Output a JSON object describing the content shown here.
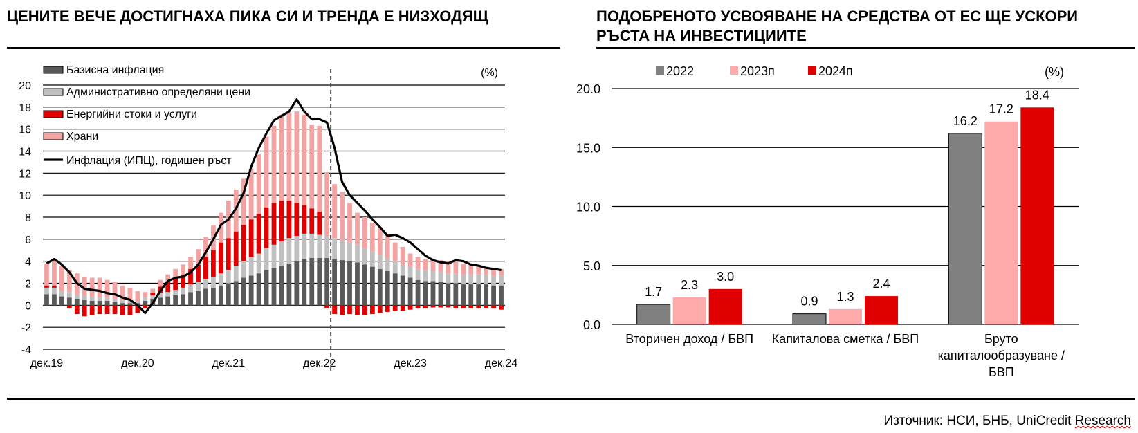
{
  "left_title": "ЦЕНИТЕ ВЕЧЕ ДОСТИГНАХА ПИКА СИ И ТРЕНДА Е НИЗХОДЯЩ",
  "right_title": "ПОДОБРЕНОТО УСВОЯВАНЕ НА СРЕДСТВА ОТ ЕС ЩЕ УСКОРИ РЪСТА НА ИНВЕСТИЦИИТЕ",
  "source_prefix": "Източник: НСИ, БНБ, UniCredit ",
  "source_suffix": "Research",
  "chart_data": [
    {
      "type": "bar",
      "stacked": true,
      "unit": "(%)",
      "ylim": [
        -4,
        20
      ],
      "yticks": [
        "-4",
        "-2",
        "0",
        "2",
        "4",
        "6",
        "8",
        "10",
        "12",
        "14",
        "16",
        "18",
        "20"
      ],
      "xticks": [
        "дек.19",
        "дек.20",
        "дек.21",
        "дек.22",
        "дек.23",
        "дек.24"
      ],
      "x": [
        "дек.19",
        "яну.20",
        "фев.20",
        "мар.20",
        "апр.20",
        "май.20",
        "юни.20",
        "юли.20",
        "авг.20",
        "сеп.20",
        "окт.20",
        "ное.20",
        "дек.20",
        "яну.21",
        "фев.21",
        "мар.21",
        "апр.21",
        "май.21",
        "юни.21",
        "юли.21",
        "авг.21",
        "сеп.21",
        "окт.21",
        "ное.21",
        "дек.21",
        "яну.22",
        "фев.22",
        "мар.22",
        "апр.22",
        "май.22",
        "юни.22",
        "юли.22",
        "авг.22",
        "сеп.22",
        "окт.22",
        "ное.22",
        "дек.22",
        "яну.23",
        "фев.23",
        "мар.23",
        "апр.23",
        "май.23",
        "юни.23",
        "юли.23",
        "авг.23",
        "сеп.23",
        "окт.23",
        "ное.23",
        "дек.23",
        "яну.24",
        "фев.24",
        "мар.24",
        "апр.24",
        "май.24",
        "юни.24",
        "юли.24",
        "авг.24",
        "сеп.24",
        "окт.24",
        "ное.24",
        "дек.24"
      ],
      "series": [
        {
          "name": "Базисна инфлация",
          "color": "#595959",
          "values": [
            1.0,
            1.0,
            0.8,
            0.7,
            0.6,
            0.5,
            0.4,
            0.4,
            0.4,
            0.3,
            0.2,
            0.2,
            0.2,
            0.4,
            0.6,
            0.7,
            0.8,
            0.9,
            1.0,
            1.2,
            1.3,
            1.5,
            1.6,
            1.8,
            2.0,
            2.2,
            2.5,
            2.7,
            2.9,
            3.2,
            3.4,
            3.6,
            3.8,
            4.0,
            4.2,
            4.3,
            4.3,
            4.3,
            4.2,
            4.1,
            4.0,
            3.9,
            3.7,
            3.5,
            3.3,
            3.1,
            2.9,
            2.7,
            2.5,
            2.3,
            2.2,
            2.2,
            2.1,
            2.0,
            2.0,
            1.9,
            1.9,
            1.9,
            1.9,
            1.8,
            1.8
          ]
        },
        {
          "name": "Административно определяни цени",
          "color": "#c0c0c0",
          "values": [
            0.6,
            0.6,
            0.5,
            0.5,
            0.4,
            0.4,
            0.4,
            0.3,
            0.3,
            0.3,
            0.3,
            0.2,
            0.2,
            0.3,
            0.3,
            0.4,
            0.4,
            0.5,
            0.6,
            0.7,
            0.8,
            0.9,
            1.0,
            1.1,
            1.2,
            1.4,
            1.5,
            1.7,
            1.8,
            2.0,
            2.1,
            2.2,
            2.3,
            2.3,
            2.3,
            2.2,
            2.1,
            2.0,
            1.9,
            1.8,
            1.7,
            1.6,
            1.5,
            1.4,
            1.3,
            1.2,
            1.1,
            1.0,
            1.0,
            1.0,
            1.0,
            0.9,
            0.9,
            0.9,
            0.9,
            0.9,
            0.9,
            0.9,
            0.9,
            0.9,
            0.9
          ]
        },
        {
          "name": "Енергийни стоки и услуги",
          "color": "#e00000",
          "values": [
            0.2,
            0.2,
            0.0,
            -0.3,
            -0.8,
            -1.0,
            -0.9,
            -0.8,
            -0.8,
            -0.8,
            -0.9,
            -0.9,
            -0.7,
            -0.3,
            0.2,
            0.6,
            0.9,
            1.1,
            1.2,
            1.4,
            1.6,
            2.0,
            2.4,
            2.8,
            2.9,
            3.1,
            3.3,
            3.4,
            3.6,
            3.7,
            3.8,
            3.7,
            3.4,
            3.0,
            2.6,
            2.3,
            2.1,
            -0.3,
            -0.8,
            -0.9,
            -0.8,
            -0.9,
            -0.9,
            -0.8,
            -0.7,
            -0.6,
            -0.5,
            -0.5,
            -0.4,
            -0.3,
            -0.3,
            -0.2,
            -0.2,
            -0.2,
            -0.3,
            -0.3,
            -0.3,
            -0.3,
            -0.3,
            -0.3,
            -0.4
          ]
        },
        {
          "name": "Храни",
          "color": "#f4a3a3",
          "values": [
            2.0,
            2.3,
            2.3,
            2.0,
            1.9,
            1.7,
            1.7,
            1.8,
            1.6,
            1.5,
            1.3,
            1.2,
            0.9,
            0.5,
            0.4,
            0.6,
            0.7,
            0.8,
            0.9,
            1.1,
            1.4,
            1.8,
            2.3,
            2.7,
            3.4,
            3.8,
            4.2,
            4.6,
            5.4,
            6.4,
            7.0,
            7.8,
            8.0,
            8.3,
            8.2,
            7.6,
            7.8,
            5.8,
            4.9,
            4.4,
            3.6,
            2.9,
            2.8,
            2.6,
            2.5,
            2.2,
            1.7,
            1.6,
            1.2,
            1.1,
            1.0,
            1.0,
            1.1,
            1.1,
            1.1,
            1.0,
            0.9,
            0.8,
            0.7,
            0.6,
            0.6
          ]
        }
      ],
      "line": {
        "name": "Инфлация (ИПЦ), годишен ръст",
        "color": "#000000",
        "values": [
          3.8,
          4.2,
          3.7,
          3.0,
          2.0,
          1.5,
          1.4,
          1.3,
          1.1,
          1.0,
          0.7,
          0.5,
          0.0,
          -0.7,
          0.2,
          1.3,
          2.2,
          2.5,
          2.6,
          3.0,
          3.7,
          4.8,
          6.0,
          7.3,
          7.8,
          8.8,
          10.2,
          12.6,
          14.3,
          15.6,
          16.8,
          17.2,
          17.6,
          18.7,
          17.6,
          16.9,
          16.9,
          16.6,
          14.3,
          11.2,
          10.0,
          9.3,
          8.6,
          7.8,
          7.1,
          6.3,
          6.4,
          6.1,
          5.7,
          5.1,
          4.5,
          4.1,
          3.9,
          3.8,
          4.1,
          4.0,
          3.7,
          3.6,
          3.4,
          3.3,
          3.2
        ]
      },
      "vline_at": "фев.23"
    },
    {
      "type": "bar",
      "unit": "(%)",
      "ylim": [
        0,
        20
      ],
      "yticks": [
        "0.0",
        "5.0",
        "10.0",
        "15.0",
        "20.0"
      ],
      "categories": [
        "Вторичен доход / БВП",
        "Капиталова сметка / БВП",
        "Бруто капиталообразуване / БВП"
      ],
      "category_lines": [
        [
          "Вторичен доход / БВП"
        ],
        [
          "Капиталова сметка / БВП"
        ],
        [
          "Бруто",
          "капиталообразуване /",
          "БВП"
        ]
      ],
      "series": [
        {
          "name": "2022",
          "color": "#808080",
          "values": [
            1.7,
            0.9,
            16.2
          ],
          "labels": [
            "1.7",
            "0.9",
            "16.2"
          ]
        },
        {
          "name": "2023п",
          "color": "#ffaaaa",
          "values": [
            2.3,
            1.3,
            17.2
          ],
          "labels": [
            "2.3",
            "1.3",
            "17.2"
          ]
        },
        {
          "name": "2024п",
          "color": "#e00000",
          "values": [
            3.0,
            2.4,
            18.4
          ],
          "labels": [
            "3.0",
            "2.4",
            "18.4"
          ]
        }
      ]
    }
  ]
}
